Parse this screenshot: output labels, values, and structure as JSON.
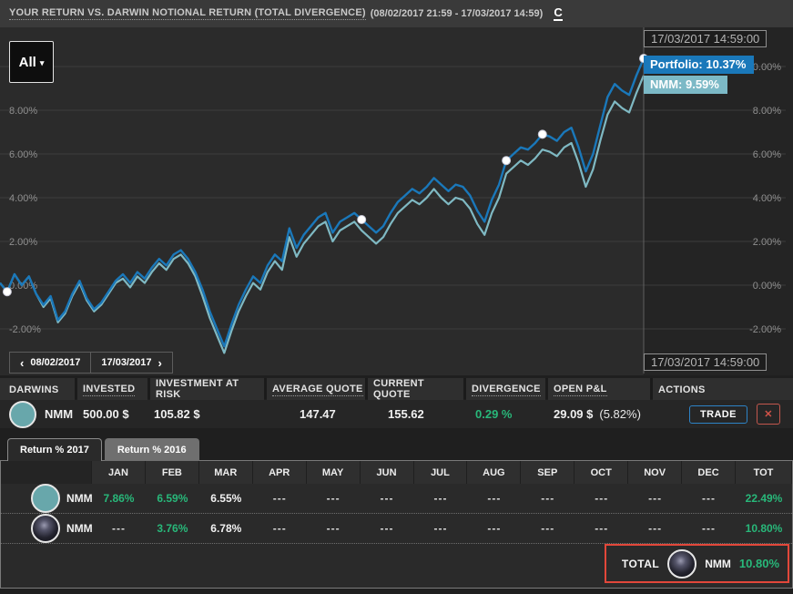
{
  "header": {
    "title_main": "YOUR RETURN VS. DARWIN NOTIONAL RETURN (TOTAL DIVERGENCE)",
    "title_dates": "(08/02/2017 21:59 - 17/03/2017 14:59)",
    "refresh_glyph": "C"
  },
  "chart": {
    "range_button": "All",
    "caret_glyph": "▾",
    "tooltip_date_top": "17/03/2017 14:59:00",
    "tooltip_date_bottom": "17/03/2017 14:59:00",
    "portfolio_badge": "Portfolio: 10.37%",
    "nmm_badge": "NMM: 9.59%",
    "nav": {
      "prev_glyph": "‹",
      "prev_date": "08/02/2017",
      "next_date": "17/03/2017",
      "next_glyph": "›"
    },
    "colors": {
      "portfolio_line": "#1a78ba",
      "nmm_line": "#7fb9c3",
      "positive": "#28b87a",
      "highlight_box": "#e2473a"
    }
  },
  "chart_data": {
    "type": "line",
    "title": "Your return vs. DARWIN notional return (total divergence)",
    "x_range": [
      "08/02/2017 21:59",
      "17/03/2017 14:59"
    ],
    "ylim": [
      -3.5,
      11
    ],
    "grid": true,
    "y_ticks": [
      {
        "v": 10,
        "label": "10.00%",
        "left": false
      },
      {
        "v": 8,
        "label": "8.00%",
        "left": true
      },
      {
        "v": 6,
        "label": "6.00%",
        "left": true
      },
      {
        "v": 4,
        "label": "4.00%",
        "left": true
      },
      {
        "v": 2,
        "label": "2.00%",
        "left": true
      },
      {
        "v": 0,
        "label": "0.00%",
        "left": true
      },
      {
        "v": -2,
        "label": "-2.00%",
        "left": true
      }
    ],
    "series": [
      {
        "name": "Portfolio",
        "key": "portfolio",
        "color": "#1a78ba",
        "final_label": "10.37%",
        "values": [
          0.1,
          -0.3,
          0.5,
          0.0,
          0.4,
          -0.4,
          -0.9,
          -0.5,
          -1.6,
          -1.2,
          -0.4,
          0.2,
          -0.6,
          -1.1,
          -0.8,
          -0.3,
          0.2,
          0.5,
          0.1,
          0.6,
          0.3,
          0.8,
          1.2,
          0.9,
          1.4,
          1.6,
          1.2,
          0.6,
          -0.2,
          -1.2,
          -2.0,
          -2.8,
          -1.8,
          -0.9,
          -0.2,
          0.4,
          0.1,
          0.9,
          1.4,
          1.1,
          2.6,
          1.7,
          2.3,
          2.7,
          3.1,
          3.3,
          2.4,
          2.9,
          3.1,
          3.3,
          3.0,
          2.7,
          2.4,
          2.7,
          3.3,
          3.8,
          4.1,
          4.4,
          4.2,
          4.5,
          4.9,
          4.6,
          4.3,
          4.6,
          4.5,
          4.1,
          3.4,
          2.9,
          3.9,
          4.6,
          5.7,
          6.0,
          6.3,
          6.2,
          6.5,
          6.9,
          6.8,
          6.6,
          7.0,
          7.2,
          6.3,
          5.2,
          6.0,
          7.3,
          8.6,
          9.2,
          8.9,
          8.7,
          9.6,
          10.37
        ]
      },
      {
        "name": "NMM",
        "key": "nmm",
        "color": "#7fb9c3",
        "final_label": "9.59%",
        "values": [
          0.1,
          -0.3,
          0.5,
          0.0,
          0.4,
          -0.4,
          -1.0,
          -0.6,
          -1.7,
          -1.3,
          -0.5,
          0.1,
          -0.7,
          -1.2,
          -0.9,
          -0.4,
          0.1,
          0.3,
          -0.1,
          0.4,
          0.1,
          0.6,
          1.0,
          0.7,
          1.2,
          1.4,
          1.0,
          0.4,
          -0.5,
          -1.5,
          -2.3,
          -3.1,
          -2.1,
          -1.2,
          -0.5,
          0.1,
          -0.2,
          0.6,
          1.1,
          0.7,
          2.2,
          1.3,
          1.9,
          2.3,
          2.7,
          2.9,
          2.0,
          2.5,
          2.7,
          2.9,
          2.5,
          2.2,
          1.9,
          2.2,
          2.8,
          3.3,
          3.6,
          3.9,
          3.7,
          4.0,
          4.4,
          4.0,
          3.7,
          4.0,
          3.9,
          3.5,
          2.8,
          2.3,
          3.3,
          4.0,
          5.1,
          5.4,
          5.7,
          5.5,
          5.8,
          6.2,
          6.1,
          5.9,
          6.3,
          6.5,
          5.6,
          4.5,
          5.3,
          6.6,
          7.8,
          8.4,
          8.1,
          7.9,
          8.8,
          9.59
        ]
      }
    ],
    "marker_indices": [
      1,
      50,
      70,
      75,
      89
    ]
  },
  "positions_table": {
    "columns": [
      {
        "label": "DARWINS",
        "u": ""
      },
      {
        "label": "INVESTED",
        "u": "hint"
      },
      {
        "label": "INVESTMENT AT RISK",
        "u": "hint"
      },
      {
        "label": "AVERAGE QUOTE",
        "u": "hint"
      },
      {
        "label": "CURRENT QUOTE",
        "u": "hint"
      },
      {
        "label": "DIVERGENCE",
        "u": "hint"
      },
      {
        "label": "OPEN P&L",
        "u": "hint"
      },
      {
        "label": "ACTIONS",
        "u": ""
      }
    ],
    "row": {
      "name": "NMM",
      "invested": "500.00 $",
      "investment_at_risk": "105.82 $",
      "average_quote": "147.47",
      "current_quote": "155.62",
      "divergence": "0.29 %",
      "open_pl": "29.09 $",
      "open_pl_pct": "(5.82%)",
      "trade_label": "TRADE",
      "close_glyph": "✕"
    }
  },
  "returns": {
    "tabs": [
      {
        "label": "Return % 2017"
      },
      {
        "label": "Return % 2016"
      }
    ],
    "months": [
      "JAN",
      "FEB",
      "MAR",
      "APR",
      "MAY",
      "JUN",
      "JUL",
      "AUG",
      "SEP",
      "OCT",
      "NOV",
      "DEC",
      "TOT"
    ],
    "rows": [
      {
        "name": "NMM",
        "values": [
          "7.86%",
          "6.59%",
          "6.55%",
          "---",
          "---",
          "---",
          "---",
          "---",
          "---",
          "---",
          "---",
          "---"
        ],
        "classes": [
          "pos",
          "pos",
          "cur",
          "dash",
          "dash",
          "dash",
          "dash",
          "dash",
          "dash",
          "dash",
          "dash",
          "dash"
        ],
        "tot": "22.49%"
      },
      {
        "name": "NMM",
        "values": [
          "---",
          "3.76%",
          "6.78%",
          "---",
          "---",
          "---",
          "---",
          "---",
          "---",
          "---",
          "---",
          "---"
        ],
        "classes": [
          "dash",
          "pos",
          "cur",
          "dash",
          "dash",
          "dash",
          "dash",
          "dash",
          "dash",
          "dash",
          "dash",
          "dash"
        ],
        "tot": "10.80%"
      }
    ],
    "total": {
      "label": "TOTAL",
      "name": "NMM",
      "value": "10.80%"
    }
  }
}
